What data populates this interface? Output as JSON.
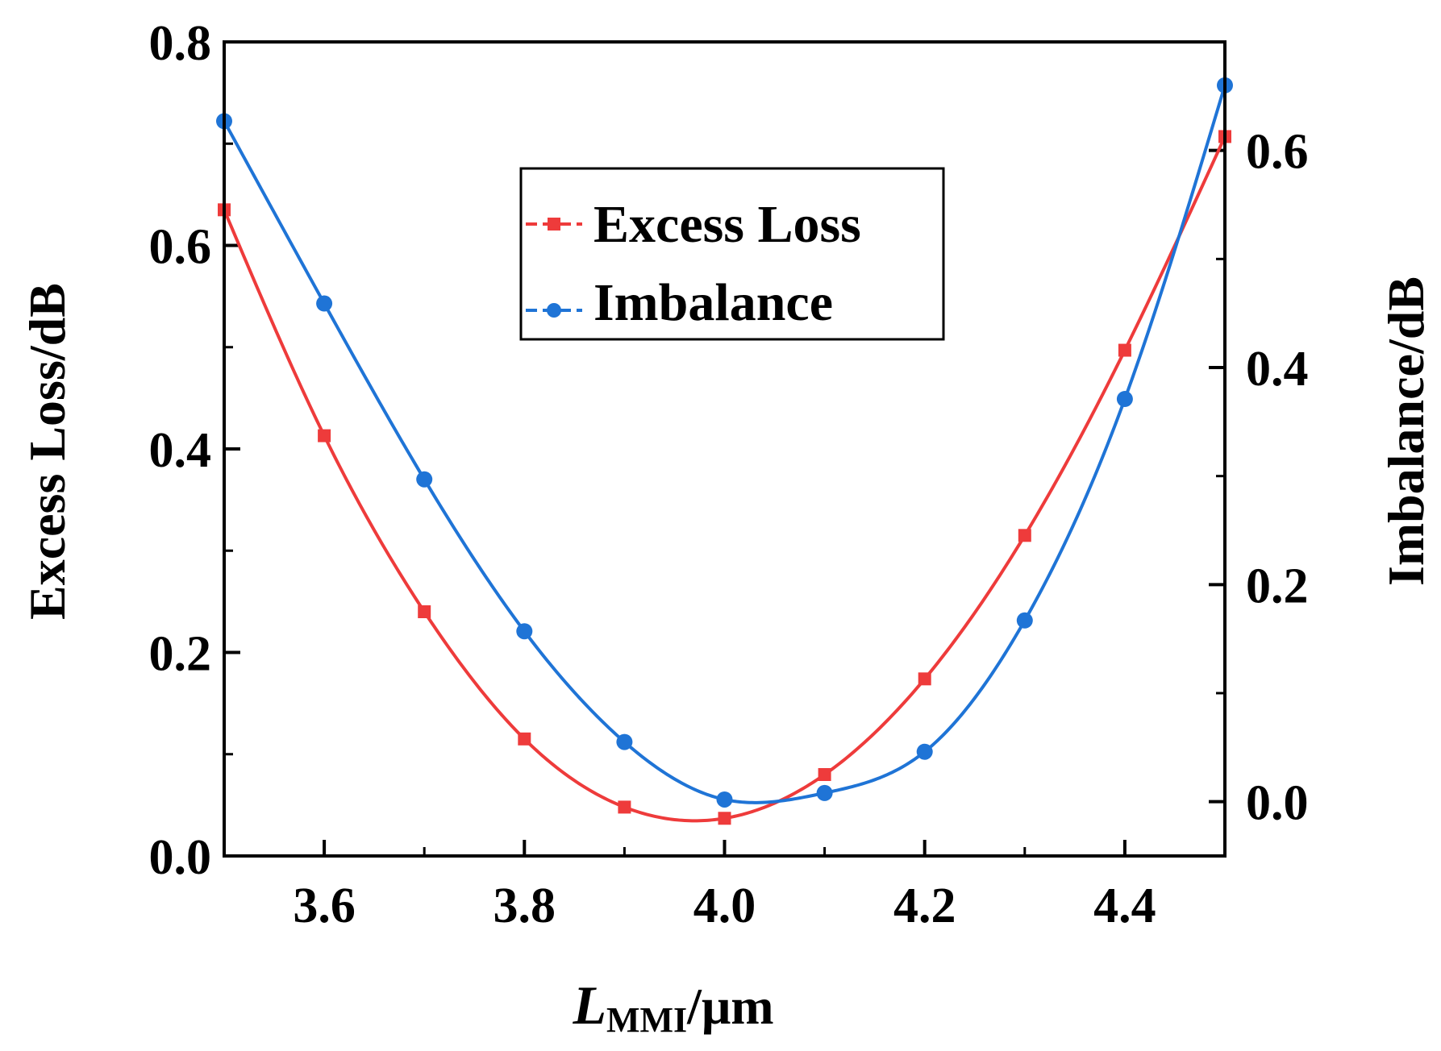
{
  "chart_data": {
    "type": "line",
    "title": "",
    "xlabel_main": "L",
    "xlabel_sub": "MMI",
    "xlabel_unit": "/μm",
    "ylabel_left": "Excess Loss/dB",
    "ylabel_right": "Imbalance/dB",
    "xlim": [
      3.5,
      4.5
    ],
    "ylim_left": [
      0.0,
      0.8
    ],
    "ylim_right": [
      -0.05,
      0.7
    ],
    "x_ticks": [
      3.6,
      3.8,
      4.0,
      4.2,
      4.4
    ],
    "x_tick_labels": [
      "3.6",
      "3.8",
      "4.0",
      "4.2",
      "4.4"
    ],
    "y_left_ticks": [
      0.0,
      0.2,
      0.4,
      0.6,
      0.8
    ],
    "y_left_tick_labels": [
      "0.0",
      "0.2",
      "0.4",
      "0.6",
      "0.8"
    ],
    "y_right_ticks": [
      0.0,
      0.2,
      0.4,
      0.6
    ],
    "y_right_tick_labels": [
      "0.0",
      "0.2",
      "0.4",
      "0.6"
    ],
    "grid": false,
    "legend_position": "top-center",
    "x": [
      3.5,
      3.6,
      3.7,
      3.8,
      3.9,
      4.0,
      4.1,
      4.2,
      4.3,
      4.4,
      4.5
    ],
    "series": [
      {
        "name": "Excess Loss",
        "axis": "left",
        "color": "#ee3b3b",
        "marker": "square",
        "values": [
          0.635,
          0.413,
          0.24,
          0.115,
          0.048,
          0.037,
          0.08,
          0.174,
          0.315,
          0.497,
          0.707
        ]
      },
      {
        "name": "Imbalance",
        "axis": "right",
        "color": "#1f74d6",
        "marker": "circle",
        "values": [
          0.627,
          0.459,
          0.297,
          0.157,
          0.055,
          0.002,
          0.008,
          0.046,
          0.167,
          0.371,
          0.66
        ]
      }
    ]
  }
}
